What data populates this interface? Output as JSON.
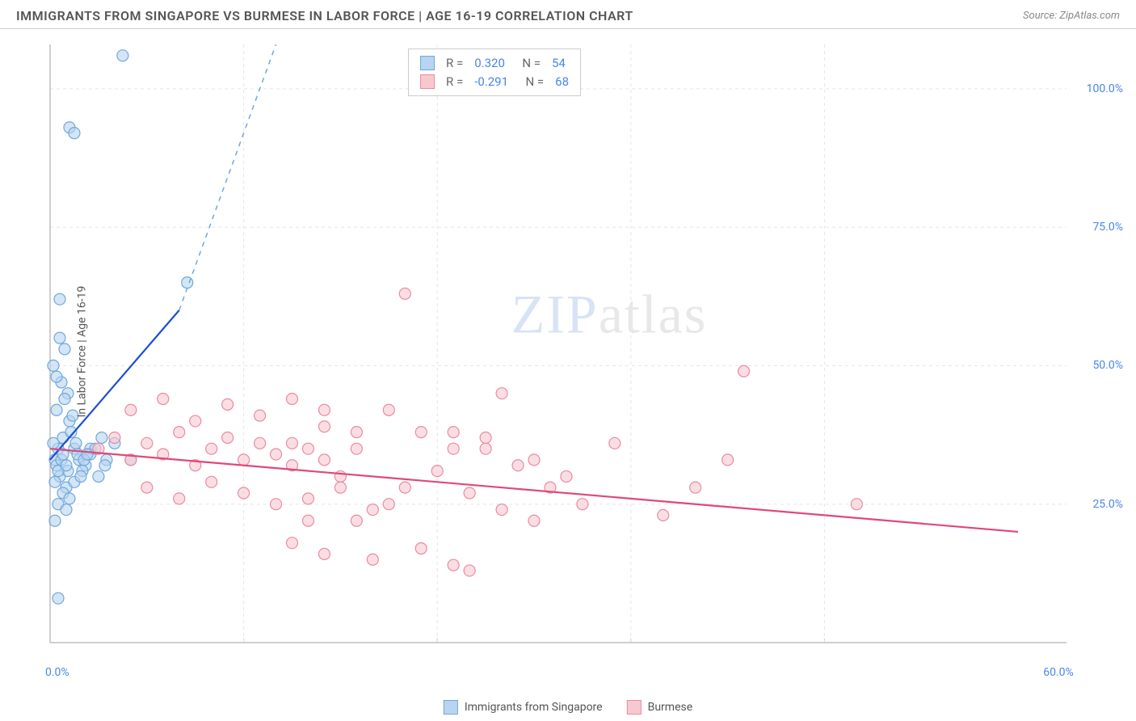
{
  "header": {
    "title": "IMMIGRANTS FROM SINGAPORE VS BURMESE IN LABOR FORCE | AGE 16-19 CORRELATION CHART",
    "source": "Source: ZipAtlas.com"
  },
  "chart": {
    "type": "scatter",
    "ylabel": "In Labor Force | Age 16-19",
    "xlim": [
      0,
      60
    ],
    "ylim": [
      0,
      108
    ],
    "xtick_labels": [
      "0.0%",
      "60.0%"
    ],
    "xtick_positions": [
      0,
      60
    ],
    "ytick_labels": [
      "25.0%",
      "50.0%",
      "75.0%",
      "100.0%"
    ],
    "ytick_positions": [
      25,
      50,
      75,
      100
    ],
    "x_minor_gridlines": [
      12,
      24,
      36,
      48
    ],
    "background_color": "#ffffff",
    "grid_color": "#e5e5e5",
    "axis_color": "#bfbfbf",
    "marker_radius": 7,
    "marker_stroke_width": 1.2,
    "trendline_width": 2.2,
    "series": [
      {
        "name": "Immigrants from Singapore",
        "fill_color": "#b8d4f0",
        "stroke_color": "#6fa8dc",
        "trendline_color": "#1c4fd6",
        "trendline_dash_color": "#6fa8dc",
        "R": "0.320",
        "N": "54",
        "trendline": {
          "x1": 0,
          "y1": 33,
          "x2": 8,
          "y2": 60,
          "dash_x2": 14,
          "dash_y2": 108
        },
        "points": [
          [
            0.3,
            33
          ],
          [
            0.4,
            32
          ],
          [
            0.5,
            35
          ],
          [
            0.6,
            30
          ],
          [
            0.8,
            37
          ],
          [
            1.0,
            28
          ],
          [
            1.2,
            40
          ],
          [
            0.2,
            50
          ],
          [
            0.7,
            47
          ],
          [
            0.9,
            53
          ],
          [
            1.1,
            45
          ],
          [
            0.4,
            42
          ],
          [
            0.6,
            55
          ],
          [
            1.3,
            38
          ],
          [
            1.5,
            35
          ],
          [
            1.8,
            33
          ],
          [
            2.2,
            32
          ],
          [
            2.5,
            35
          ],
          [
            3.0,
            30
          ],
          [
            3.5,
            33
          ],
          [
            4.0,
            36
          ],
          [
            0.3,
            22
          ],
          [
            0.5,
            25
          ],
          [
            0.8,
            27
          ],
          [
            1.0,
            24
          ],
          [
            1.2,
            26
          ],
          [
            1.5,
            29
          ],
          [
            2.0,
            31
          ],
          [
            0.5,
            8
          ],
          [
            1.2,
            93
          ],
          [
            1.5,
            92
          ],
          [
            4.5,
            106
          ],
          [
            2.5,
            34
          ],
          [
            3.2,
            37
          ],
          [
            0.6,
            62
          ],
          [
            0.4,
            48
          ],
          [
            0.9,
            44
          ],
          [
            1.4,
            41
          ],
          [
            1.7,
            34
          ],
          [
            2.1,
            33
          ],
          [
            2.8,
            35
          ],
          [
            3.4,
            32
          ],
          [
            0.2,
            36
          ],
          [
            0.7,
            33
          ],
          [
            1.1,
            31
          ],
          [
            1.6,
            36
          ],
          [
            1.9,
            30
          ],
          [
            2.3,
            34
          ],
          [
            0.3,
            29
          ],
          [
            0.5,
            31
          ],
          [
            0.8,
            34
          ],
          [
            1.0,
            32
          ],
          [
            8.5,
            65
          ],
          [
            5.0,
            33
          ]
        ]
      },
      {
        "name": "Burmese",
        "fill_color": "#f8c8d0",
        "stroke_color": "#e88ca0",
        "trendline_color": "#e04878",
        "R": "-0.291",
        "N": "68",
        "trendline": {
          "x1": 0,
          "y1": 35,
          "x2": 60,
          "y2": 20
        },
        "points": [
          [
            3,
            35
          ],
          [
            4,
            37
          ],
          [
            5,
            33
          ],
          [
            6,
            36
          ],
          [
            7,
            34
          ],
          [
            8,
            38
          ],
          [
            9,
            32
          ],
          [
            10,
            35
          ],
          [
            11,
            37
          ],
          [
            12,
            33
          ],
          [
            13,
            36
          ],
          [
            14,
            34
          ],
          [
            15,
            32
          ],
          [
            16,
            35
          ],
          [
            17,
            33
          ],
          [
            18,
            30
          ],
          [
            5,
            42
          ],
          [
            7,
            44
          ],
          [
            9,
            40
          ],
          [
            11,
            43
          ],
          [
            13,
            41
          ],
          [
            15,
            44
          ],
          [
            17,
            42
          ],
          [
            19,
            38
          ],
          [
            6,
            28
          ],
          [
            8,
            26
          ],
          [
            10,
            29
          ],
          [
            12,
            27
          ],
          [
            14,
            25
          ],
          [
            16,
            26
          ],
          [
            18,
            28
          ],
          [
            20,
            24
          ],
          [
            15,
            18
          ],
          [
            17,
            16
          ],
          [
            20,
            15
          ],
          [
            23,
            17
          ],
          [
            25,
            14
          ],
          [
            22,
            63
          ],
          [
            28,
            45
          ],
          [
            30,
            33
          ],
          [
            32,
            30
          ],
          [
            35,
            36
          ],
          [
            38,
            23
          ],
          [
            40,
            28
          ],
          [
            42,
            33
          ],
          [
            25,
            38
          ],
          [
            27,
            35
          ],
          [
            29,
            32
          ],
          [
            31,
            28
          ],
          [
            33,
            25
          ],
          [
            22,
            28
          ],
          [
            24,
            31
          ],
          [
            26,
            27
          ],
          [
            28,
            24
          ],
          [
            30,
            22
          ],
          [
            15,
            36
          ],
          [
            17,
            39
          ],
          [
            19,
            35
          ],
          [
            21,
            42
          ],
          [
            23,
            38
          ],
          [
            25,
            35
          ],
          [
            27,
            37
          ],
          [
            43,
            49
          ],
          [
            50,
            25
          ],
          [
            16,
            22
          ],
          [
            19,
            22
          ],
          [
            21,
            25
          ],
          [
            26,
            13
          ]
        ]
      }
    ],
    "stats_box": {
      "rows": [
        {
          "swatch": "blue",
          "R": "0.320",
          "N": "54"
        },
        {
          "swatch": "pink",
          "R": "-0.291",
          "N": "68"
        }
      ]
    },
    "bottom_legend": [
      {
        "swatch": "blue",
        "label": "Immigrants from Singapore"
      },
      {
        "swatch": "pink",
        "label": "Burmese"
      }
    ],
    "watermark": {
      "zip": "ZIP",
      "atlas": "atlas"
    }
  }
}
